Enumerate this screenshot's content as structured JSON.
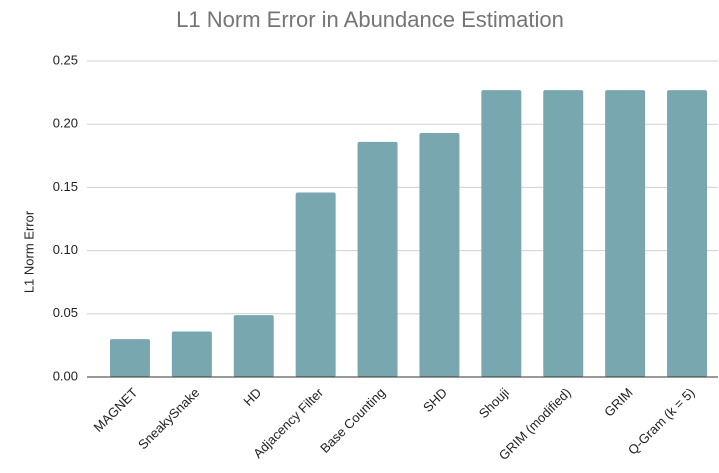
{
  "chart_data": {
    "type": "bar",
    "title": "L1 Norm Error in Abundance Estimation",
    "y_label": "L1 Norm Error",
    "categories": [
      "MAGNET",
      "SneakySnake",
      "HD",
      "Adjacency Filter",
      "Base Counting",
      "SHD",
      "Shouji",
      "GRIM (modified)",
      "GRIM",
      "Q-Gram (k = 5)"
    ],
    "values": [
      0.03,
      0.036,
      0.049,
      0.146,
      0.186,
      0.193,
      0.227,
      0.227,
      0.227,
      0.227
    ],
    "color": "#78a7b0",
    "ylim": [
      0,
      0.25
    ],
    "yticks": [
      {
        "value": 0,
        "label": "0.00"
      },
      0.05,
      {
        "value": 0.1,
        "label": "0.10"
      },
      0.15,
      {
        "value": 0.2,
        "label": "0.20"
      },
      0.25
    ],
    "grid": true
  }
}
